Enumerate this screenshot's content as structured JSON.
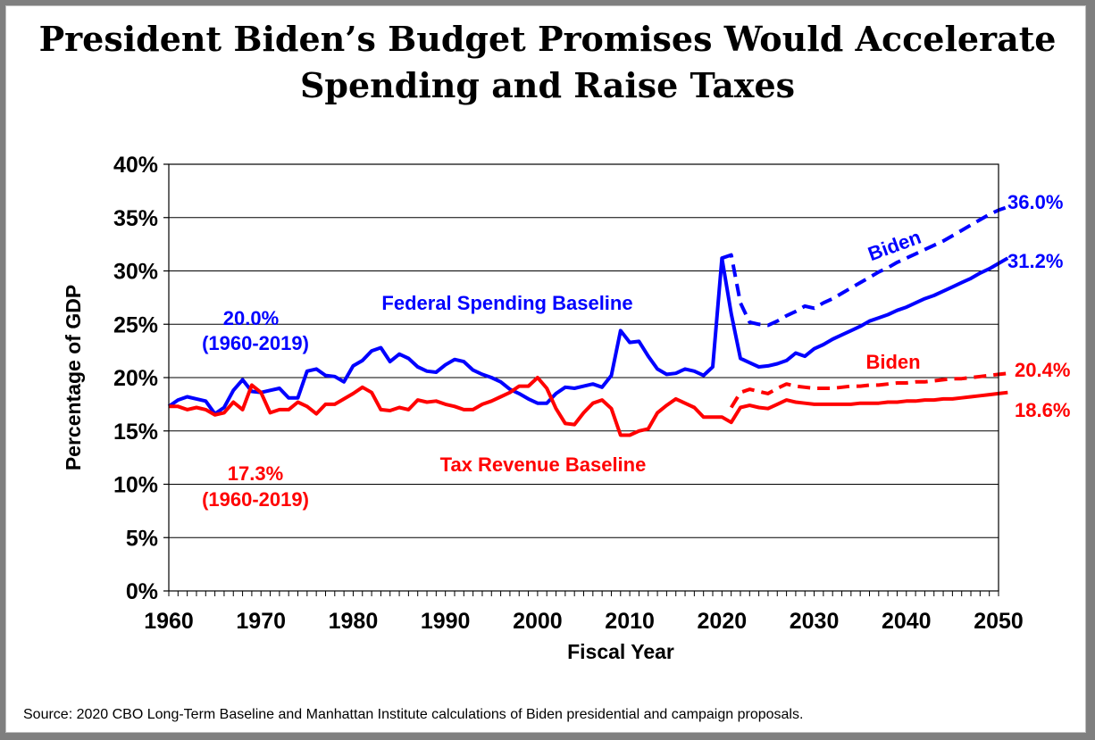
{
  "title_lines": [
    "President Biden’s Budget Promises Would Accelerate",
    "Spending and Raise Taxes"
  ],
  "source": "Source: 2020 CBO Long-Term Baseline and Manhattan Institute calculations of Biden presidential and campaign proposals.",
  "colors": {
    "spending": "#0000ff",
    "revenue": "#ff0000",
    "grid": "#000000"
  },
  "chart_data": {
    "type": "line",
    "title": "President Biden’s Budget Promises Would Accelerate Spending and Raise Taxes",
    "xlabel": "Fiscal Year",
    "ylabel": "Percentage of GDP",
    "xlim": [
      1960,
      2050
    ],
    "ylim": [
      0,
      40
    ],
    "grid": true,
    "x_ticks": [
      1960,
      1970,
      1980,
      1990,
      2000,
      2010,
      2020,
      2030,
      2040,
      2050
    ],
    "x_tick_labels": [
      "1960",
      "1970",
      "1980",
      "1990",
      "2000",
      "2010",
      "2020",
      "2030",
      "2040",
      "2050"
    ],
    "y_ticks": [
      0,
      5,
      10,
      15,
      20,
      25,
      30,
      35,
      40
    ],
    "y_tick_labels": [
      "0%",
      "5%",
      "10%",
      "15%",
      "20%",
      "25%",
      "30%",
      "35%",
      "40%"
    ],
    "series": [
      {
        "name": "Federal Spending Baseline",
        "color": "#0000ff",
        "style": "solid",
        "points": [
          [
            1960,
            17.3
          ],
          [
            1961,
            17.9
          ],
          [
            1962,
            18.2
          ],
          [
            1963,
            18.0
          ],
          [
            1964,
            17.8
          ],
          [
            1965,
            16.6
          ],
          [
            1966,
            17.2
          ],
          [
            1967,
            18.8
          ],
          [
            1968,
            19.8
          ],
          [
            1969,
            18.7
          ],
          [
            1970,
            18.6
          ],
          [
            1971,
            18.8
          ],
          [
            1972,
            19.0
          ],
          [
            1973,
            18.1
          ],
          [
            1974,
            18.1
          ],
          [
            1975,
            20.6
          ],
          [
            1976,
            20.8
          ],
          [
            1977,
            20.2
          ],
          [
            1978,
            20.1
          ],
          [
            1979,
            19.6
          ],
          [
            1980,
            21.1
          ],
          [
            1981,
            21.6
          ],
          [
            1982,
            22.5
          ],
          [
            1983,
            22.8
          ],
          [
            1984,
            21.5
          ],
          [
            1985,
            22.2
          ],
          [
            1986,
            21.8
          ],
          [
            1987,
            21.0
          ],
          [
            1988,
            20.6
          ],
          [
            1989,
            20.5
          ],
          [
            1990,
            21.2
          ],
          [
            1991,
            21.7
          ],
          [
            1992,
            21.5
          ],
          [
            1993,
            20.7
          ],
          [
            1994,
            20.3
          ],
          [
            1995,
            20.0
          ],
          [
            1996,
            19.6
          ],
          [
            1997,
            18.9
          ],
          [
            1998,
            18.5
          ],
          [
            1999,
            18.0
          ],
          [
            2000,
            17.6
          ],
          [
            2001,
            17.6
          ],
          [
            2002,
            18.5
          ],
          [
            2003,
            19.1
          ],
          [
            2004,
            19.0
          ],
          [
            2005,
            19.2
          ],
          [
            2006,
            19.4
          ],
          [
            2007,
            19.1
          ],
          [
            2008,
            20.2
          ],
          [
            2009,
            24.4
          ],
          [
            2010,
            23.3
          ],
          [
            2011,
            23.4
          ],
          [
            2012,
            22.0
          ],
          [
            2013,
            20.8
          ],
          [
            2014,
            20.3
          ],
          [
            2015,
            20.4
          ],
          [
            2016,
            20.8
          ],
          [
            2017,
            20.6
          ],
          [
            2018,
            20.2
          ],
          [
            2019,
            21.0
          ],
          [
            2020,
            31.2
          ],
          [
            2021,
            26.0
          ],
          [
            2022,
            21.8
          ],
          [
            2023,
            21.4
          ],
          [
            2024,
            21.0
          ],
          [
            2025,
            21.1
          ],
          [
            2026,
            21.3
          ],
          [
            2027,
            21.6
          ],
          [
            2028,
            22.3
          ],
          [
            2029,
            22.0
          ],
          [
            2030,
            22.7
          ],
          [
            2031,
            23.1
          ],
          [
            2032,
            23.6
          ],
          [
            2033,
            24.0
          ],
          [
            2034,
            24.4
          ],
          [
            2035,
            24.8
          ],
          [
            2036,
            25.3
          ],
          [
            2037,
            25.6
          ],
          [
            2038,
            25.9
          ],
          [
            2039,
            26.3
          ],
          [
            2040,
            26.6
          ],
          [
            2041,
            27.0
          ],
          [
            2042,
            27.4
          ],
          [
            2043,
            27.7
          ],
          [
            2044,
            28.1
          ],
          [
            2045,
            28.5
          ],
          [
            2046,
            28.9
          ],
          [
            2047,
            29.3
          ],
          [
            2048,
            29.8
          ],
          [
            2049,
            30.2
          ],
          [
            2050,
            30.7
          ],
          [
            2051,
            31.2
          ]
        ]
      },
      {
        "name": "Biden",
        "color": "#0000ff",
        "style": "dashed",
        "points": [
          [
            2020,
            31.2
          ],
          [
            2021,
            31.5
          ],
          [
            2022,
            27.0
          ],
          [
            2023,
            25.2
          ],
          [
            2024,
            25.0
          ],
          [
            2025,
            24.9
          ],
          [
            2026,
            25.3
          ],
          [
            2027,
            25.8
          ],
          [
            2028,
            26.2
          ],
          [
            2029,
            26.7
          ],
          [
            2030,
            26.5
          ],
          [
            2031,
            27.0
          ],
          [
            2032,
            27.4
          ],
          [
            2033,
            27.9
          ],
          [
            2034,
            28.4
          ],
          [
            2035,
            28.9
          ],
          [
            2036,
            29.4
          ],
          [
            2037,
            29.9
          ],
          [
            2038,
            30.3
          ],
          [
            2039,
            30.8
          ],
          [
            2040,
            31.2
          ],
          [
            2041,
            31.6
          ],
          [
            2042,
            32.0
          ],
          [
            2043,
            32.4
          ],
          [
            2044,
            32.8
          ],
          [
            2045,
            33.3
          ],
          [
            2046,
            33.8
          ],
          [
            2047,
            34.3
          ],
          [
            2048,
            34.8
          ],
          [
            2049,
            35.3
          ],
          [
            2050,
            35.7
          ],
          [
            2051,
            36.0
          ]
        ]
      },
      {
        "name": "Tax Revenue Baseline",
        "color": "#ff0000",
        "style": "solid",
        "points": [
          [
            1960,
            17.3
          ],
          [
            1961,
            17.3
          ],
          [
            1962,
            17.0
          ],
          [
            1963,
            17.2
          ],
          [
            1964,
            17.0
          ],
          [
            1965,
            16.5
          ],
          [
            1966,
            16.7
          ],
          [
            1967,
            17.7
          ],
          [
            1968,
            17.0
          ],
          [
            1969,
            19.3
          ],
          [
            1970,
            18.6
          ],
          [
            1971,
            16.7
          ],
          [
            1972,
            17.0
          ],
          [
            1973,
            17.0
          ],
          [
            1974,
            17.7
          ],
          [
            1975,
            17.3
          ],
          [
            1976,
            16.6
          ],
          [
            1977,
            17.5
          ],
          [
            1978,
            17.5
          ],
          [
            1979,
            18.0
          ],
          [
            1980,
            18.5
          ],
          [
            1981,
            19.1
          ],
          [
            1982,
            18.6
          ],
          [
            1983,
            17.0
          ],
          [
            1984,
            16.9
          ],
          [
            1985,
            17.2
          ],
          [
            1986,
            17.0
          ],
          [
            1987,
            17.9
          ],
          [
            1988,
            17.7
          ],
          [
            1989,
            17.8
          ],
          [
            1990,
            17.5
          ],
          [
            1991,
            17.3
          ],
          [
            1992,
            17.0
          ],
          [
            1993,
            17.0
          ],
          [
            1994,
            17.5
          ],
          [
            1995,
            17.8
          ],
          [
            1996,
            18.2
          ],
          [
            1997,
            18.6
          ],
          [
            1998,
            19.2
          ],
          [
            1999,
            19.2
          ],
          [
            2000,
            20.0
          ],
          [
            2001,
            19.0
          ],
          [
            2002,
            17.1
          ],
          [
            2003,
            15.7
          ],
          [
            2004,
            15.6
          ],
          [
            2005,
            16.7
          ],
          [
            2006,
            17.6
          ],
          [
            2007,
            17.9
          ],
          [
            2008,
            17.1
          ],
          [
            2009,
            14.6
          ],
          [
            2010,
            14.6
          ],
          [
            2011,
            15.0
          ],
          [
            2012,
            15.2
          ],
          [
            2013,
            16.7
          ],
          [
            2014,
            17.4
          ],
          [
            2015,
            18.0
          ],
          [
            2016,
            17.6
          ],
          [
            2017,
            17.2
          ],
          [
            2018,
            16.3
          ],
          [
            2019,
            16.3
          ],
          [
            2020,
            16.3
          ],
          [
            2021,
            15.8
          ],
          [
            2022,
            17.2
          ],
          [
            2023,
            17.4
          ],
          [
            2024,
            17.2
          ],
          [
            2025,
            17.1
          ],
          [
            2026,
            17.5
          ],
          [
            2027,
            17.9
          ],
          [
            2028,
            17.7
          ],
          [
            2029,
            17.6
          ],
          [
            2030,
            17.5
          ],
          [
            2031,
            17.5
          ],
          [
            2032,
            17.5
          ],
          [
            2033,
            17.5
          ],
          [
            2034,
            17.5
          ],
          [
            2035,
            17.6
          ],
          [
            2036,
            17.6
          ],
          [
            2037,
            17.6
          ],
          [
            2038,
            17.7
          ],
          [
            2039,
            17.7
          ],
          [
            2040,
            17.8
          ],
          [
            2041,
            17.8
          ],
          [
            2042,
            17.9
          ],
          [
            2043,
            17.9
          ],
          [
            2044,
            18.0
          ],
          [
            2045,
            18.0
          ],
          [
            2046,
            18.1
          ],
          [
            2047,
            18.2
          ],
          [
            2048,
            18.3
          ],
          [
            2049,
            18.4
          ],
          [
            2050,
            18.5
          ],
          [
            2051,
            18.6
          ]
        ]
      },
      {
        "name": "Biden",
        "color": "#ff0000",
        "style": "dashed",
        "points": [
          [
            2021,
            17.2
          ],
          [
            2022,
            18.6
          ],
          [
            2023,
            18.9
          ],
          [
            2024,
            18.7
          ],
          [
            2025,
            18.5
          ],
          [
            2026,
            19.0
          ],
          [
            2027,
            19.4
          ],
          [
            2028,
            19.2
          ],
          [
            2029,
            19.1
          ],
          [
            2030,
            19.0
          ],
          [
            2031,
            19.0
          ],
          [
            2032,
            19.0
          ],
          [
            2033,
            19.1
          ],
          [
            2034,
            19.2
          ],
          [
            2035,
            19.2
          ],
          [
            2036,
            19.3
          ],
          [
            2037,
            19.3
          ],
          [
            2038,
            19.4
          ],
          [
            2039,
            19.5
          ],
          [
            2040,
            19.5
          ],
          [
            2041,
            19.6
          ],
          [
            2042,
            19.6
          ],
          [
            2043,
            19.7
          ],
          [
            2044,
            19.8
          ],
          [
            2045,
            19.9
          ],
          [
            2046,
            19.9
          ],
          [
            2047,
            20.0
          ],
          [
            2048,
            20.1
          ],
          [
            2049,
            20.2
          ],
          [
            2050,
            20.3
          ],
          [
            2051,
            20.4
          ]
        ]
      }
    ],
    "annotations": [
      {
        "text": "Federal Spending Baseline",
        "color": "#0000ff"
      },
      {
        "text": "Tax Revenue Baseline",
        "color": "#ff0000"
      },
      {
        "text": "20.0%",
        "color": "#0000ff"
      },
      {
        "text": "(1960-2019)",
        "color": "#0000ff"
      },
      {
        "text": "17.3%",
        "color": "#ff0000"
      },
      {
        "text": "(1960-2019)",
        "color": "#ff0000"
      },
      {
        "text": "Biden",
        "color": "#0000ff"
      },
      {
        "text": "Biden",
        "color": "#ff0000"
      },
      {
        "text": "36.0%",
        "color": "#0000ff"
      },
      {
        "text": "31.2%",
        "color": "#0000ff"
      },
      {
        "text": "20.4%",
        "color": "#ff0000"
      },
      {
        "text": "18.6%",
        "color": "#ff0000"
      }
    ]
  }
}
